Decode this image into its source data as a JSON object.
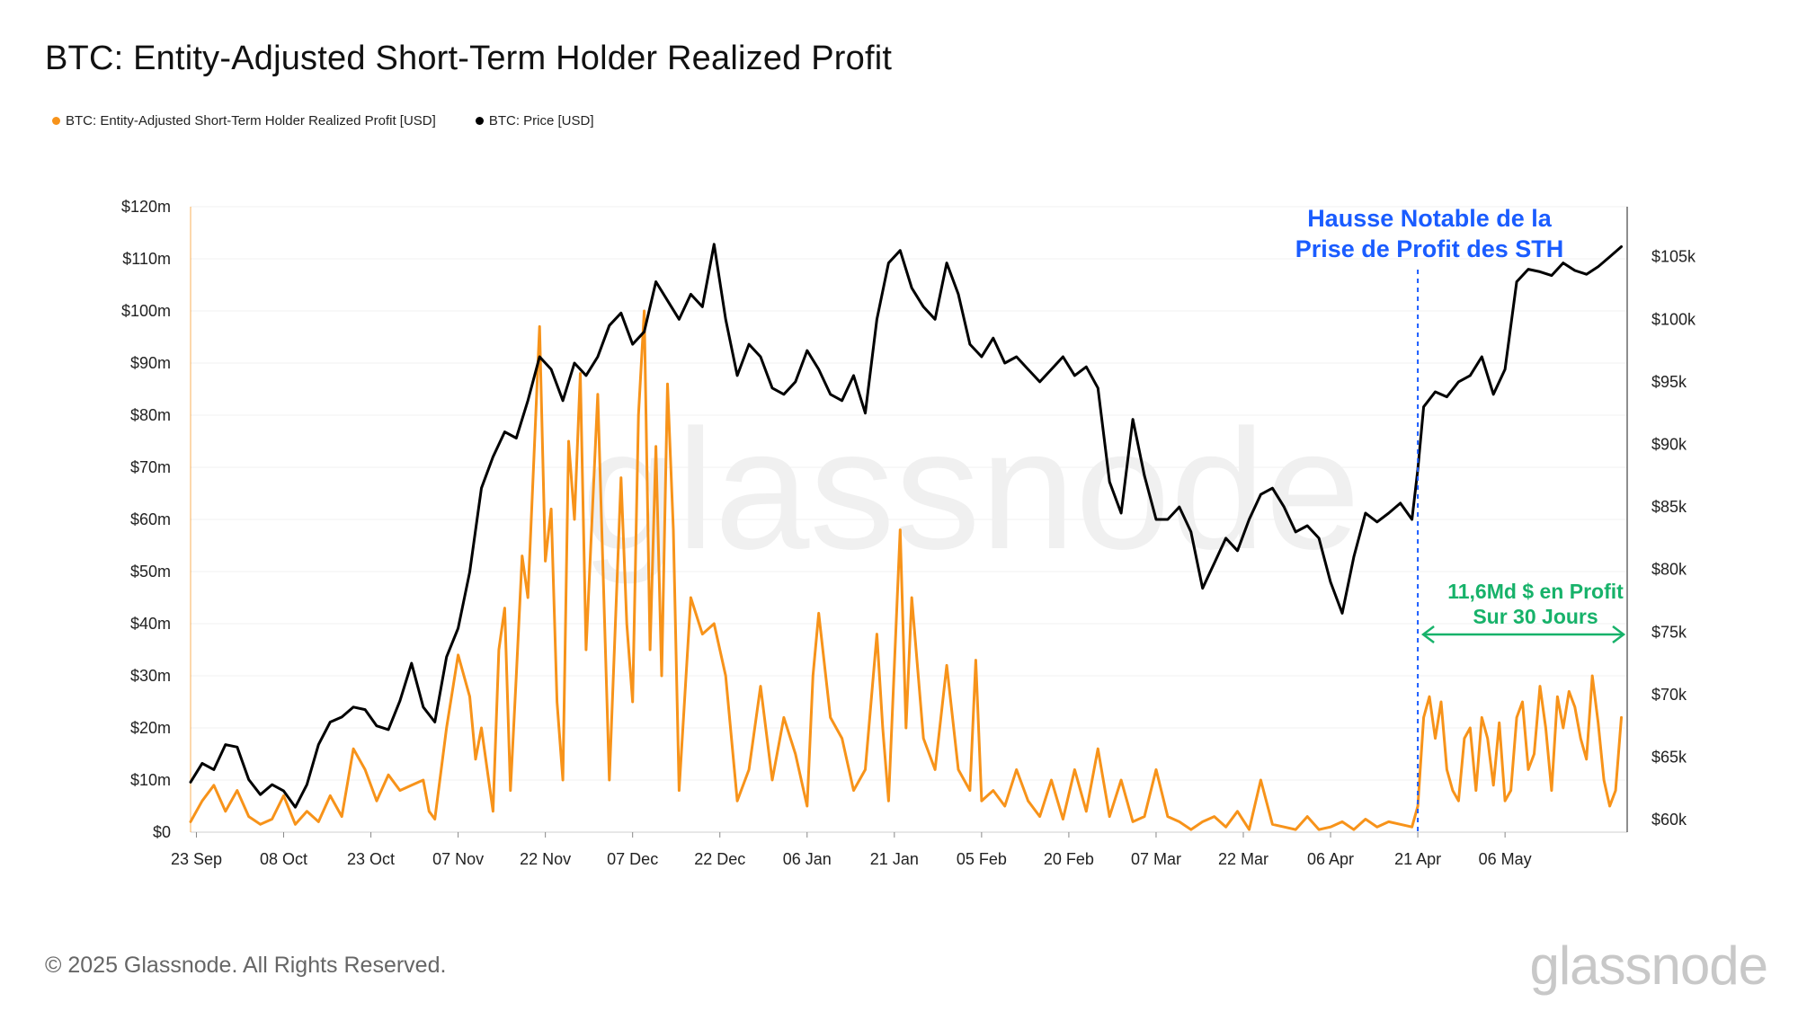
{
  "page": {
    "title": "BTC: Entity-Adjusted Short-Term Holder Realized Profit",
    "footer": "© 2025 Glassnode. All Rights Reserved.",
    "brand": "glassnode",
    "watermark": "glassnode"
  },
  "legend": [
    {
      "label": "BTC: Entity-Adjusted Short-Term Holder Realized Profit [USD]",
      "color": "#f7931a"
    },
    {
      "label": "BTC: Price [USD]",
      "color": "#000000"
    }
  ],
  "chart_data": {
    "type": "line",
    "title": "BTC: Entity-Adjusted Short-Term Holder Realized Profit",
    "x_range_days": [
      0,
      247
    ],
    "x_start_date": "2024-09-22",
    "x_ticks": [
      {
        "label": "23 Sep",
        "day": 1
      },
      {
        "label": "08 Oct",
        "day": 16
      },
      {
        "label": "23 Oct",
        "day": 31
      },
      {
        "label": "07 Nov",
        "day": 46
      },
      {
        "label": "22 Nov",
        "day": 61
      },
      {
        "label": "07 Dec",
        "day": 76
      },
      {
        "label": "22 Dec",
        "day": 91
      },
      {
        "label": "06 Jan",
        "day": 106
      },
      {
        "label": "21 Jan",
        "day": 121
      },
      {
        "label": "05 Feb",
        "day": 136
      },
      {
        "label": "20 Feb",
        "day": 151
      },
      {
        "label": "07 Mar",
        "day": 166
      },
      {
        "label": "22 Mar",
        "day": 181
      },
      {
        "label": "06 Apr",
        "day": 196
      },
      {
        "label": "21 Apr",
        "day": 211
      },
      {
        "label": "06 May",
        "day": 226
      }
    ],
    "y_left": {
      "range": [
        0,
        120000000
      ],
      "ticks": [
        {
          "label": "$0",
          "value": 0
        },
        {
          "label": "$10m",
          "value": 10000000
        },
        {
          "label": "$20m",
          "value": 20000000
        },
        {
          "label": "$30m",
          "value": 30000000
        },
        {
          "label": "$40m",
          "value": 40000000
        },
        {
          "label": "$50m",
          "value": 50000000
        },
        {
          "label": "$60m",
          "value": 60000000
        },
        {
          "label": "$70m",
          "value": 70000000
        },
        {
          "label": "$80m",
          "value": 80000000
        },
        {
          "label": "$90m",
          "value": 90000000
        },
        {
          "label": "$100m",
          "value": 100000000
        },
        {
          "label": "$110m",
          "value": 110000000
        },
        {
          "label": "$120m",
          "value": 120000000
        }
      ]
    },
    "y_right": {
      "range": [
        59000,
        109000
      ],
      "ticks": [
        {
          "label": "$60k",
          "value": 60000
        },
        {
          "label": "$65k",
          "value": 65000
        },
        {
          "label": "$70k",
          "value": 70000
        },
        {
          "label": "$75k",
          "value": 75000
        },
        {
          "label": "$80k",
          "value": 80000
        },
        {
          "label": "$85k",
          "value": 85000
        },
        {
          "label": "$90k",
          "value": 90000
        },
        {
          "label": "$95k",
          "value": 95000
        },
        {
          "label": "$100k",
          "value": 100000
        },
        {
          "label": "$105k",
          "value": 105000
        }
      ]
    },
    "series": [
      {
        "name": "BTC: Entity-Adjusted Short-Term Holder Realized Profit [USD]",
        "axis": "left",
        "color": "#f7931a",
        "days": [
          0,
          2,
          4,
          6,
          8,
          10,
          12,
          14,
          16,
          18,
          20,
          22,
          24,
          26,
          28,
          30,
          32,
          34,
          36,
          38,
          40,
          41,
          42,
          44,
          46,
          48,
          49,
          50,
          52,
          53,
          54,
          55,
          56,
          57,
          58,
          60,
          61,
          62,
          63,
          64,
          65,
          66,
          67,
          68,
          70,
          72,
          74,
          75,
          76,
          77,
          78,
          79,
          80,
          81,
          82,
          83,
          84,
          86,
          88,
          90,
          92,
          94,
          96,
          98,
          100,
          102,
          104,
          106,
          107,
          108,
          110,
          112,
          114,
          116,
          118,
          119,
          120,
          122,
          123,
          124,
          126,
          128,
          130,
          132,
          134,
          135,
          136,
          138,
          140,
          142,
          144,
          146,
          148,
          150,
          152,
          154,
          156,
          158,
          160,
          162,
          164,
          166,
          168,
          170,
          172,
          174,
          176,
          178,
          180,
          182,
          184,
          186,
          188,
          190,
          192,
          194,
          196,
          198,
          200,
          202,
          204,
          206,
          208,
          210,
          211,
          212,
          213,
          214,
          215,
          216,
          217,
          218,
          219,
          220,
          221,
          222,
          223,
          224,
          225,
          226,
          227,
          228,
          229,
          230,
          231,
          232,
          233,
          234,
          235,
          236,
          237,
          238,
          239,
          240,
          241,
          242,
          243,
          244,
          245,
          246
        ],
        "values": [
          2000000,
          6000000,
          9000000,
          4000000,
          8000000,
          3000000,
          1500000,
          2500000,
          7000000,
          1500000,
          4000000,
          2000000,
          7000000,
          3000000,
          16000000,
          12000000,
          6000000,
          11000000,
          8000000,
          9000000,
          10000000,
          4000000,
          2500000,
          20000000,
          34000000,
          26000000,
          14000000,
          20000000,
          4000000,
          35000000,
          43000000,
          8000000,
          30000000,
          53000000,
          45000000,
          97000000,
          52000000,
          62000000,
          25000000,
          10000000,
          75000000,
          60000000,
          88000000,
          35000000,
          84000000,
          10000000,
          68000000,
          40000000,
          25000000,
          80000000,
          100000000,
          35000000,
          74000000,
          30000000,
          86000000,
          58000000,
          8000000,
          45000000,
          38000000,
          40000000,
          30000000,
          6000000,
          12000000,
          28000000,
          10000000,
          22000000,
          15000000,
          5000000,
          30000000,
          42000000,
          22000000,
          18000000,
          8000000,
          12000000,
          38000000,
          20000000,
          6000000,
          58000000,
          20000000,
          45000000,
          18000000,
          12000000,
          32000000,
          12000000,
          8000000,
          33000000,
          6000000,
          8000000,
          5000000,
          12000000,
          6000000,
          3000000,
          10000000,
          2500000,
          12000000,
          4000000,
          16000000,
          3000000,
          10000000,
          2000000,
          3000000,
          12000000,
          3000000,
          2000000,
          500000,
          2000000,
          3000000,
          1000000,
          4000000,
          500000,
          10000000,
          1500000,
          1000000,
          500000,
          3000000,
          500000,
          1000000,
          2000000,
          500000,
          2500000,
          1000000,
          2000000,
          1500000,
          1000000,
          5000000,
          22000000,
          26000000,
          18000000,
          25000000,
          12000000,
          8000000,
          6000000,
          18000000,
          20000000,
          8000000,
          22000000,
          18000000,
          9000000,
          21000000,
          6000000,
          8000000,
          22000000,
          25000000,
          12000000,
          15000000,
          28000000,
          20000000,
          8000000,
          26000000,
          20000000,
          27000000,
          24000000,
          18000000,
          14000000,
          30000000,
          21000000,
          10000000,
          5000000,
          8000000,
          22000000
        ]
      },
      {
        "name": "BTC: Price [USD]",
        "axis": "right",
        "color": "#000000",
        "days": [
          0,
          2,
          4,
          6,
          8,
          10,
          12,
          14,
          16,
          18,
          20,
          22,
          24,
          26,
          28,
          30,
          32,
          34,
          36,
          38,
          40,
          42,
          44,
          46,
          48,
          50,
          52,
          54,
          56,
          58,
          60,
          62,
          64,
          66,
          68,
          70,
          72,
          74,
          76,
          78,
          80,
          82,
          84,
          86,
          88,
          90,
          92,
          94,
          96,
          98,
          100,
          102,
          104,
          106,
          108,
          110,
          112,
          114,
          116,
          118,
          120,
          122,
          124,
          126,
          128,
          130,
          132,
          134,
          136,
          138,
          140,
          142,
          144,
          146,
          148,
          150,
          152,
          154,
          156,
          158,
          160,
          162,
          164,
          166,
          168,
          170,
          172,
          174,
          176,
          178,
          180,
          182,
          184,
          186,
          188,
          190,
          192,
          194,
          196,
          198,
          200,
          202,
          204,
          206,
          208,
          210,
          211,
          212,
          214,
          216,
          218,
          220,
          222,
          224,
          226,
          228,
          230,
          232,
          234,
          236,
          238,
          240,
          242,
          244,
          246
        ],
        "values": [
          63000,
          64500,
          64000,
          66000,
          65800,
          63200,
          62000,
          62800,
          62300,
          61000,
          62800,
          66000,
          67800,
          68200,
          69000,
          68800,
          67500,
          67200,
          69500,
          72500,
          69000,
          67800,
          73000,
          75300,
          79800,
          86500,
          89000,
          91000,
          90500,
          93500,
          97000,
          96000,
          93500,
          96500,
          95500,
          97000,
          99500,
          100500,
          98000,
          99000,
          103000,
          101500,
          100000,
          102000,
          101000,
          106000,
          100000,
          95500,
          98000,
          97000,
          94500,
          94000,
          95000,
          97500,
          96000,
          94000,
          93500,
          95500,
          92500,
          100000,
          104500,
          105500,
          102500,
          101000,
          100000,
          104500,
          102000,
          98000,
          97000,
          98500,
          96500,
          97000,
          96000,
          95000,
          96000,
          97000,
          95500,
          96200,
          94500,
          87000,
          84500,
          92000,
          87500,
          84000,
          84000,
          85000,
          83000,
          78500,
          80500,
          82500,
          81500,
          84000,
          86000,
          86500,
          85000,
          83000,
          83500,
          82500,
          79000,
          76500,
          81000,
          84500,
          83800,
          84500,
          85300,
          84000,
          88000,
          93000,
          94200,
          93800,
          95000,
          95500,
          97000,
          94000,
          96000,
          103000,
          104000,
          103800,
          103500,
          104500,
          103900,
          103600,
          104200,
          105000,
          105800
        ]
      }
    ],
    "annotations": [
      {
        "text_lines": [
          "Hausse Notable de la",
          "Prise de Profit des STH"
        ],
        "color": "#1a5cff",
        "marker_day": 211
      },
      {
        "text_lines": [
          "11,6Md $ en Profit",
          "Sur 30 Jours"
        ],
        "color": "#17b26a",
        "range_days": [
          211,
          247
        ]
      }
    ]
  }
}
